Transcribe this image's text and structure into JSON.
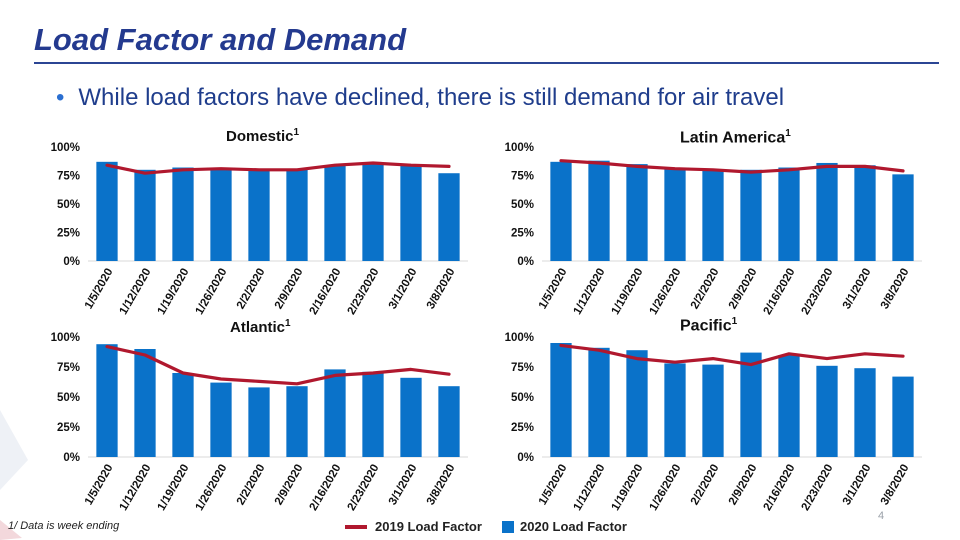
{
  "slide": {
    "title": "Load Factor and Demand",
    "bullet": "While load factors have declined, there is still demand for air travel",
    "footnote": "1/ Data is week ending",
    "page_number": "4"
  },
  "legend": {
    "line_label": "2019 Load Factor",
    "bar_label": "2020 Load Factor"
  },
  "colors": {
    "bar": "#0a72c9",
    "line": "#b0182e",
    "title": "#243a8f"
  },
  "chart_data": [
    {
      "type": "bar",
      "title": "Domestic",
      "title_sup": "1",
      "categories": [
        "1/5/2020",
        "1/12/2020",
        "1/19/2020",
        "1/26/2020",
        "2/2/2020",
        "2/9/2020",
        "2/16/2020",
        "2/23/2020",
        "3/1/2020",
        "3/8/2020"
      ],
      "yticks": [
        "0%",
        "25%",
        "50%",
        "75%",
        "100%"
      ],
      "ylim": [
        0,
        100
      ],
      "series": [
        {
          "name": "2020 Load Factor",
          "kind": "bar",
          "values": [
            87,
            80,
            82,
            80,
            79,
            80,
            84,
            86,
            84,
            77
          ]
        },
        {
          "name": "2019 Load Factor",
          "kind": "line",
          "values": [
            84,
            77,
            80,
            81,
            80,
            80,
            84,
            86,
            84,
            83
          ]
        }
      ]
    },
    {
      "type": "bar",
      "title": "Latin America",
      "title_sup": "1",
      "categories": [
        "1/5/2020",
        "1/12/2020",
        "1/19/2020",
        "1/26/2020",
        "2/2/2020",
        "2/9/2020",
        "2/16/2020",
        "2/23/2020",
        "3/1/2020",
        "3/8/2020"
      ],
      "yticks": [
        "0%",
        "25%",
        "50%",
        "75%",
        "100%"
      ],
      "ylim": [
        0,
        100
      ],
      "series": [
        {
          "name": "2020 Load Factor",
          "kind": "bar",
          "values": [
            87,
            88,
            85,
            81,
            80,
            80,
            82,
            86,
            84,
            76
          ]
        },
        {
          "name": "2019 Load Factor",
          "kind": "line",
          "values": [
            88,
            86,
            83,
            81,
            80,
            78,
            80,
            83,
            83,
            79
          ]
        }
      ]
    },
    {
      "type": "bar",
      "title": "Atlantic",
      "title_sup": "1",
      "categories": [
        "1/5/2020",
        "1/12/2020",
        "1/19/2020",
        "1/26/2020",
        "2/2/2020",
        "2/9/2020",
        "2/16/2020",
        "2/23/2020",
        "3/1/2020",
        "3/8/2020"
      ],
      "yticks": [
        "0%",
        "25%",
        "50%",
        "75%",
        "100%"
      ],
      "ylim": [
        0,
        100
      ],
      "series": [
        {
          "name": "2020 Load Factor",
          "kind": "bar",
          "values": [
            94,
            90,
            70,
            62,
            58,
            59,
            73,
            71,
            66,
            59
          ]
        },
        {
          "name": "2019 Load Factor",
          "kind": "line",
          "values": [
            92,
            85,
            70,
            65,
            63,
            61,
            68,
            70,
            73,
            69
          ]
        }
      ]
    },
    {
      "type": "bar",
      "title": "Pacific",
      "title_sup": "1",
      "categories": [
        "1/5/2020",
        "1/12/2020",
        "1/19/2020",
        "1/26/2020",
        "2/2/2020",
        "2/9/2020",
        "2/16/2020",
        "2/23/2020",
        "3/1/2020",
        "3/8/2020"
      ],
      "yticks": [
        "0%",
        "25%",
        "50%",
        "75%",
        "100%"
      ],
      "ylim": [
        0,
        100
      ],
      "series": [
        {
          "name": "2020 Load Factor",
          "kind": "bar",
          "values": [
            95,
            91,
            89,
            78,
            77,
            87,
            85,
            76,
            74,
            67
          ]
        },
        {
          "name": "2019 Load Factor",
          "kind": "line",
          "values": [
            93,
            89,
            82,
            79,
            82,
            77,
            86,
            82,
            86,
            84
          ]
        }
      ]
    }
  ]
}
